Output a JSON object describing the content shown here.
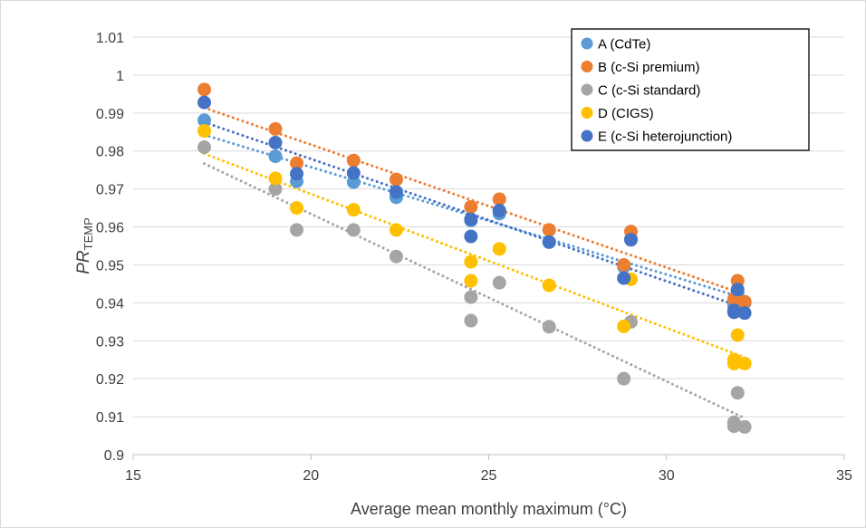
{
  "chart_data": {
    "type": "scatter",
    "xlabel": "Average mean monthly maximum (°C)",
    "ylabel": "PR",
    "ylabel_subscript": "TEMP",
    "xlim": [
      15,
      35
    ],
    "ylim": [
      0.9,
      1.01
    ],
    "x_ticks": [
      "15",
      "20",
      "25",
      "30",
      "35"
    ],
    "y_ticks": [
      "0.9",
      "0.91",
      "0.92",
      "0.93",
      "0.94",
      "0.95",
      "0.96",
      "0.97",
      "0.98",
      "0.99",
      "1",
      "1.01"
    ],
    "grid": "horizontal",
    "legend_position": "top-right",
    "trendline": "linear-dotted",
    "series": [
      {
        "name": "A (CdTe)",
        "color": "#5b9bd5",
        "points": [
          [
            17.0,
            0.9881
          ],
          [
            19.0,
            0.9786
          ],
          [
            19.6,
            0.972
          ],
          [
            21.2,
            0.9718
          ],
          [
            22.4,
            0.9678
          ],
          [
            24.5,
            0.9617
          ],
          [
            25.3,
            0.9635
          ],
          [
            26.7,
            0.956
          ],
          [
            28.8,
            0.9495
          ],
          [
            29.0,
            0.9568
          ],
          [
            31.9,
            0.9395
          ],
          [
            32.0,
            0.9425
          ],
          [
            32.2,
            0.94
          ]
        ]
      },
      {
        "name": "B (c-Si premium)",
        "color": "#ed7d31",
        "points": [
          [
            17.0,
            0.9962
          ],
          [
            19.0,
            0.9858
          ],
          [
            19.6,
            0.9768
          ],
          [
            21.2,
            0.9775
          ],
          [
            22.4,
            0.9725
          ],
          [
            24.5,
            0.9653
          ],
          [
            25.3,
            0.9673
          ],
          [
            26.7,
            0.9592
          ],
          [
            28.8,
            0.95
          ],
          [
            29.0,
            0.9588
          ],
          [
            31.9,
            0.941
          ],
          [
            32.0,
            0.9458
          ],
          [
            32.2,
            0.9403
          ]
        ]
      },
      {
        "name": "C (c-Si standard)",
        "color": "#a5a5a5",
        "points": [
          [
            17.0,
            0.981
          ],
          [
            19.0,
            0.97
          ],
          [
            19.6,
            0.9592
          ],
          [
            21.2,
            0.9592
          ],
          [
            22.4,
            0.9522
          ],
          [
            24.5,
            0.9415
          ],
          [
            24.5,
            0.9353
          ],
          [
            25.3,
            0.9453
          ],
          [
            26.7,
            0.9337
          ],
          [
            28.8,
            0.92
          ],
          [
            29.0,
            0.935
          ],
          [
            31.9,
            0.9075
          ],
          [
            31.9,
            0.9085
          ],
          [
            32.0,
            0.9163
          ],
          [
            32.2,
            0.9073
          ]
        ]
      },
      {
        "name": "D (CIGS)",
        "color": "#ffc000",
        "points": [
          [
            17.0,
            0.9853
          ],
          [
            19.0,
            0.9728
          ],
          [
            19.6,
            0.965
          ],
          [
            21.2,
            0.9645
          ],
          [
            22.4,
            0.9592
          ],
          [
            24.5,
            0.9508
          ],
          [
            24.5,
            0.9458
          ],
          [
            25.3,
            0.9542
          ],
          [
            26.7,
            0.9446
          ],
          [
            28.8,
            0.9338
          ],
          [
            29.0,
            0.9462
          ],
          [
            31.9,
            0.924
          ],
          [
            31.9,
            0.925
          ],
          [
            32.0,
            0.9315
          ],
          [
            32.2,
            0.924
          ]
        ]
      },
      {
        "name": "E (c-Si heterojunction)",
        "color": "#4472c4",
        "points": [
          [
            17.0,
            0.9928
          ],
          [
            19.0,
            0.9822
          ],
          [
            19.6,
            0.974
          ],
          [
            21.2,
            0.9742
          ],
          [
            22.4,
            0.9692
          ],
          [
            24.5,
            0.962
          ],
          [
            24.5,
            0.9575
          ],
          [
            25.3,
            0.9643
          ],
          [
            26.7,
            0.956
          ],
          [
            28.8,
            0.9465
          ],
          [
            29.0,
            0.9566
          ],
          [
            31.9,
            0.9375
          ],
          [
            31.9,
            0.938
          ],
          [
            32.0,
            0.9435
          ],
          [
            32.2,
            0.9373
          ]
        ]
      }
    ]
  }
}
